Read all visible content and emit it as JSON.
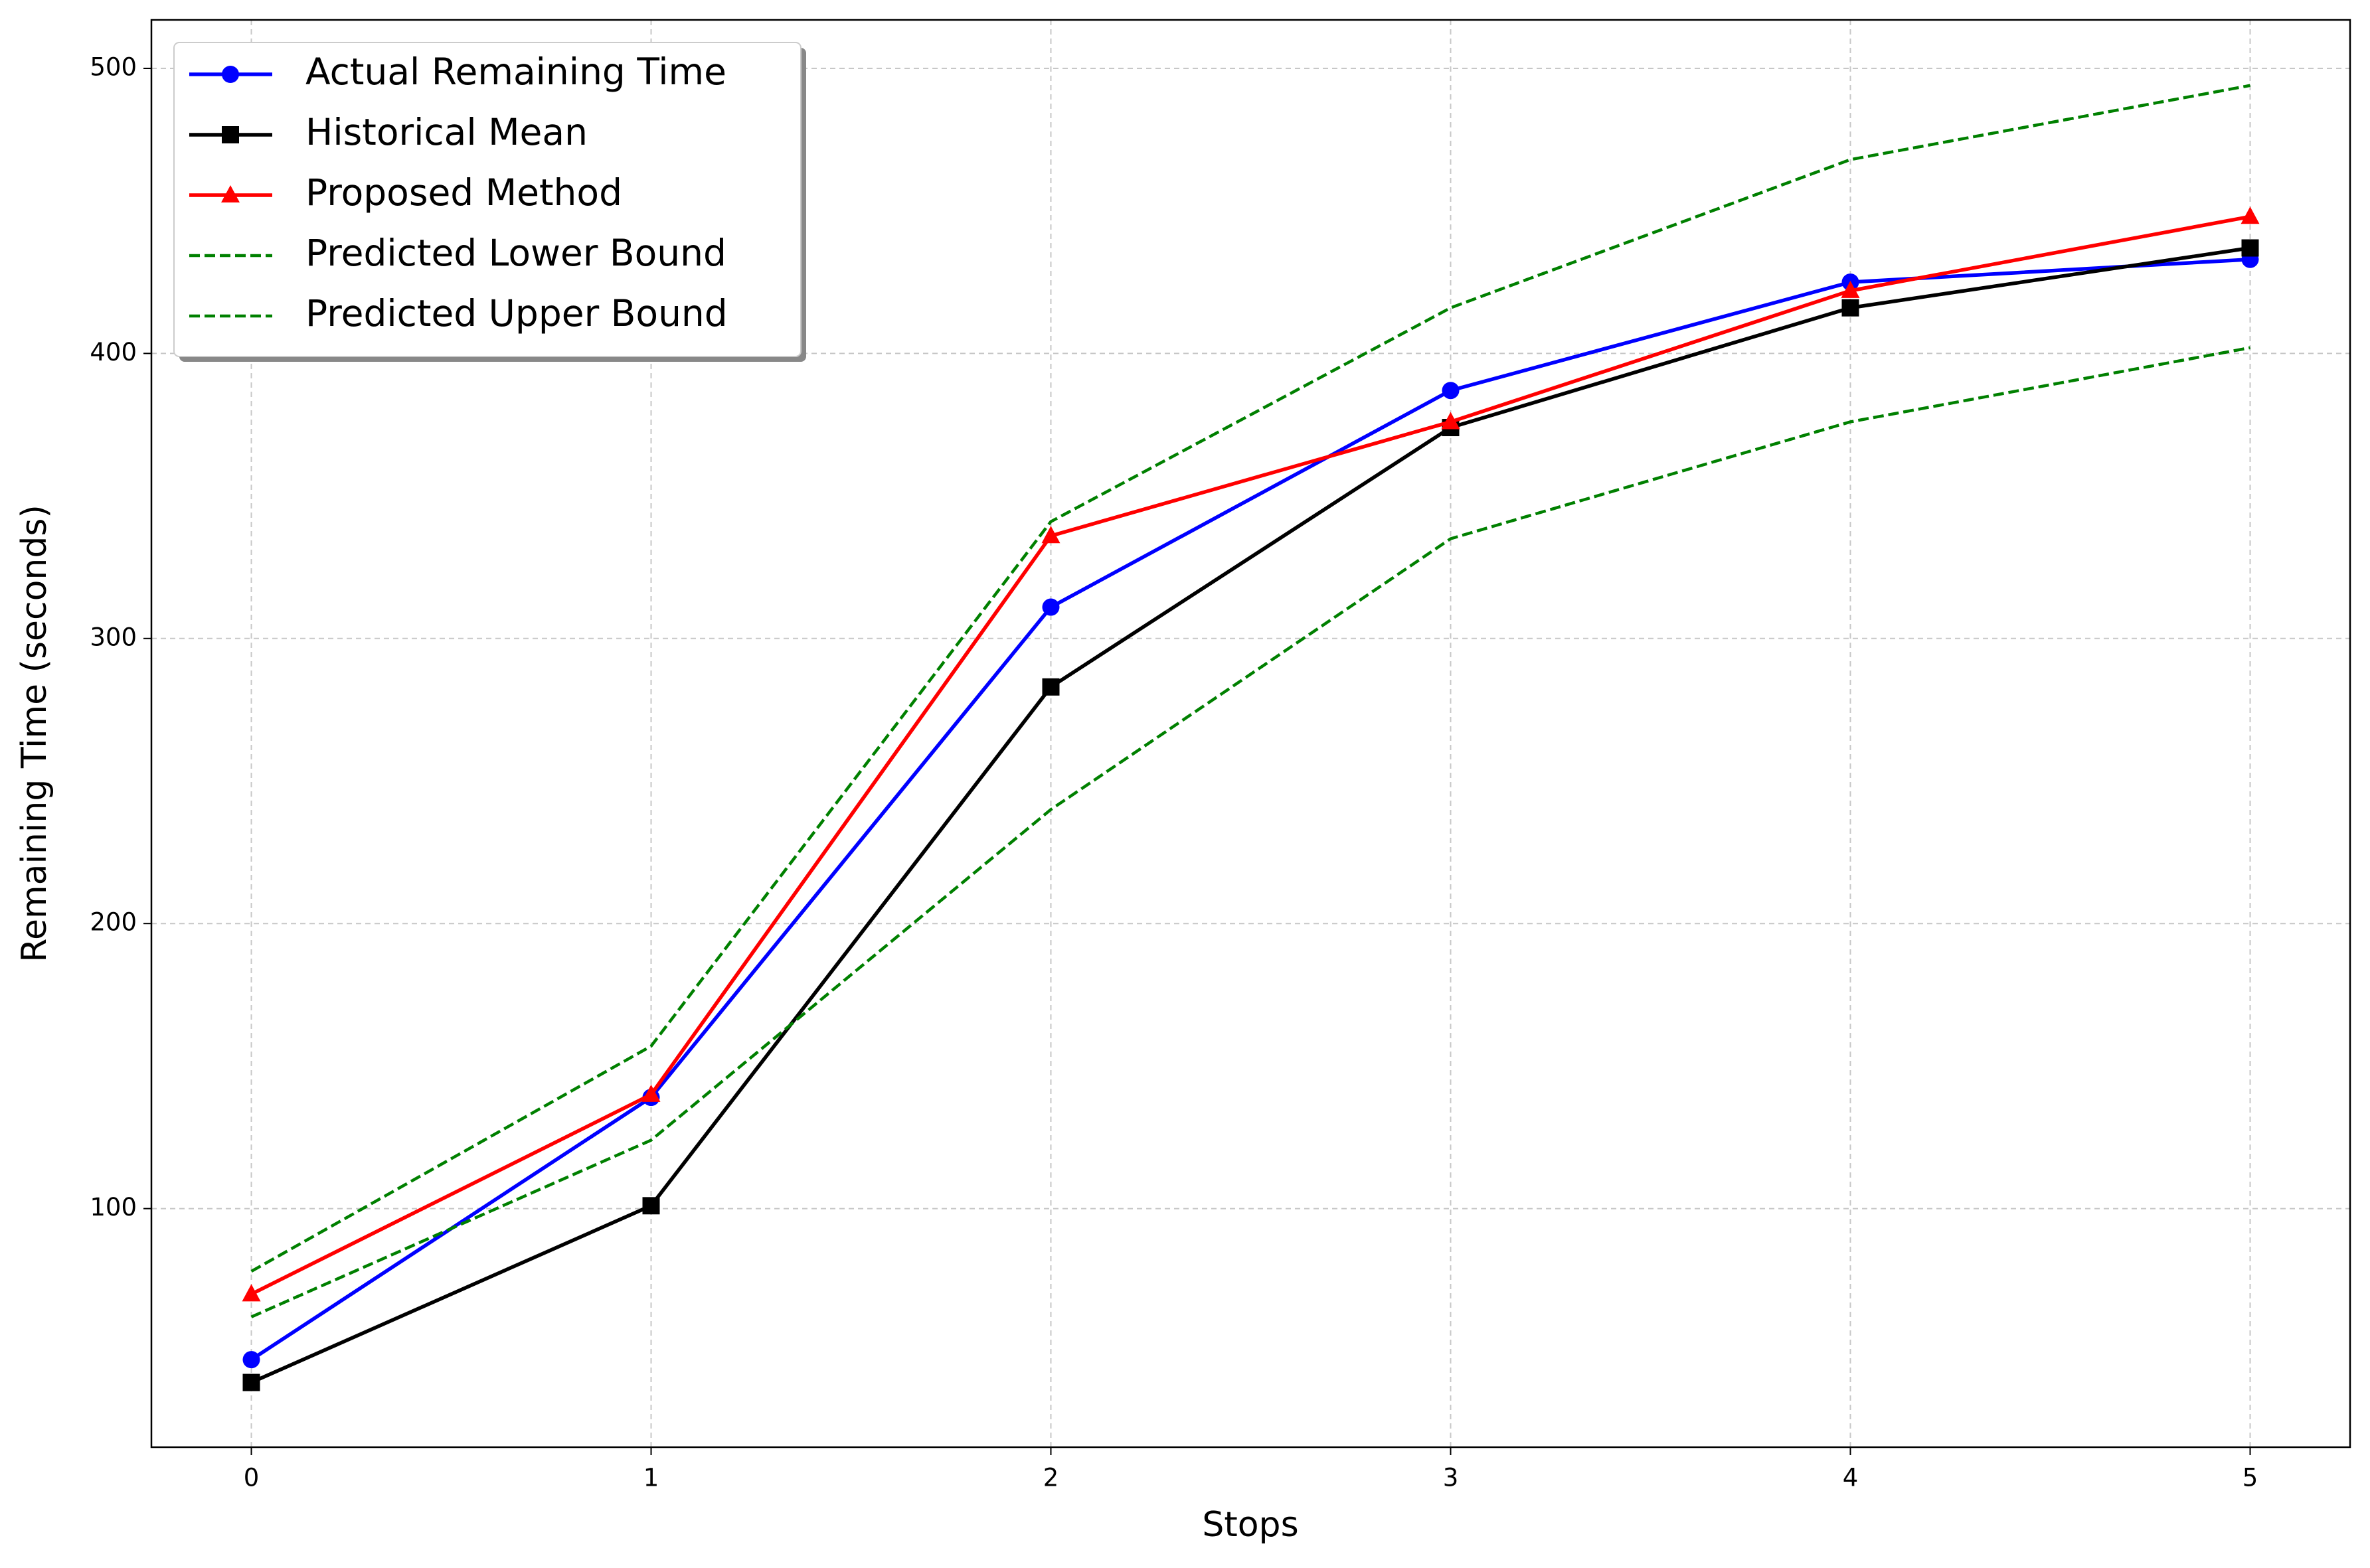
{
  "chart_data": {
    "type": "line",
    "xlabel": "Stops",
    "ylabel": "Remaining Time (seconds)",
    "x": [
      0,
      1,
      2,
      3,
      4,
      5
    ],
    "series": [
      {
        "name": "Actual Remaining Time",
        "color": "#0000ff",
        "marker": "circle",
        "linestyle": "solid",
        "values": [
          47,
          139,
          311,
          387,
          425,
          433
        ]
      },
      {
        "name": "Historical Mean",
        "color": "#000000",
        "marker": "square",
        "linestyle": "solid",
        "values": [
          39,
          101,
          283,
          374,
          416,
          437
        ]
      },
      {
        "name": "Proposed Method",
        "color": "#ff0000",
        "marker": "triangle",
        "linestyle": "solid",
        "values": [
          70,
          140,
          336,
          376,
          422,
          448
        ]
      },
      {
        "name": "Predicted Lower Bound",
        "color": "#008000",
        "marker": null,
        "linestyle": "dashed",
        "values": [
          62,
          124,
          240,
          335,
          376,
          402
        ]
      },
      {
        "name": "Predicted Upper Bound",
        "color": "#008000",
        "marker": null,
        "linestyle": "dashed",
        "values": [
          78,
          157,
          341,
          416,
          468,
          494
        ]
      }
    ],
    "xlim": [
      -0.25,
      5.25
    ],
    "xticks": [
      0,
      1,
      2,
      3,
      4,
      5
    ],
    "ylim": [
      16.3,
      517
    ],
    "yticks": [
      100,
      200,
      300,
      400,
      500
    ],
    "grid": true,
    "legend": "upper left"
  }
}
